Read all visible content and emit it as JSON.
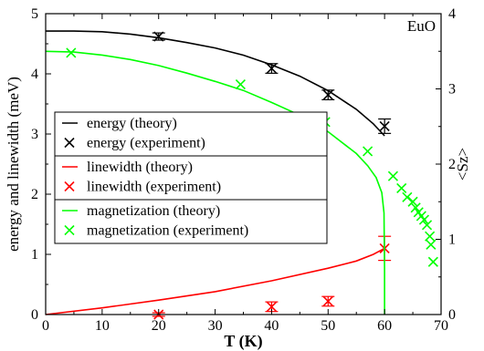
{
  "chart_data": {
    "type": "line",
    "annotation": "EuO",
    "xlabel": "T (K)",
    "ylabel": "energy and linewidth (meV)",
    "y2label": "<Sz>",
    "xlim": [
      0,
      70
    ],
    "ylim": [
      0,
      5
    ],
    "y2lim": [
      0,
      4
    ],
    "xticks": [
      0,
      10,
      20,
      30,
      40,
      50,
      60,
      70
    ],
    "yticks": [
      0,
      1,
      2,
      3,
      4,
      5
    ],
    "y2ticks": [
      0,
      1,
      2,
      3,
      4
    ],
    "grid": false,
    "legend_position": "center-left",
    "series": [
      {
        "name": "energy (theory)",
        "kind": "line",
        "axis": "left",
        "color": "#000000",
        "x": [
          0,
          5,
          10,
          15,
          20,
          25,
          30,
          35,
          40,
          45,
          50,
          55,
          58,
          60
        ],
        "y": [
          4.71,
          4.71,
          4.7,
          4.66,
          4.6,
          4.52,
          4.43,
          4.31,
          4.15,
          3.96,
          3.72,
          3.41,
          3.17,
          2.97
        ]
      },
      {
        "name": "energy (experiment)",
        "kind": "points",
        "axis": "left",
        "color": "#000000",
        "marker": "x",
        "x": [
          20,
          40,
          50,
          60
        ],
        "y": [
          4.62,
          4.09,
          3.65,
          3.13
        ],
        "err": [
          0.06,
          0.08,
          0.08,
          0.12
        ]
      },
      {
        "name": "linewidth (theory)",
        "kind": "line",
        "axis": "left",
        "color": "#ff0000",
        "x": [
          0,
          10,
          20,
          30,
          40,
          50,
          55,
          58,
          60
        ],
        "y": [
          0,
          0.11,
          0.24,
          0.38,
          0.56,
          0.77,
          0.89,
          1.0,
          1.1
        ]
      },
      {
        "name": "linewidth (experiment)",
        "kind": "points",
        "axis": "left",
        "color": "#ff0000",
        "marker": "x",
        "x": [
          20,
          40,
          50,
          60
        ],
        "y": [
          0.0,
          0.13,
          0.22,
          1.1
        ],
        "err": [
          0.03,
          0.08,
          0.08,
          0.2
        ]
      },
      {
        "name": "magnetization (theory)",
        "kind": "line",
        "axis": "right",
        "color": "#00ff00",
        "x": [
          0,
          5,
          10,
          15,
          20,
          25,
          30,
          35,
          40,
          45,
          50,
          55,
          57,
          58.5,
          59.5,
          59.9,
          60,
          60
        ],
        "y": [
          3.5,
          3.49,
          3.45,
          3.39,
          3.31,
          3.21,
          3.1,
          2.98,
          2.82,
          2.65,
          2.43,
          2.14,
          1.98,
          1.82,
          1.62,
          1.35,
          0.6,
          0
        ]
      },
      {
        "name": "magnetization (experiment)",
        "kind": "points",
        "axis": "right",
        "color": "#00ff00",
        "marker": "x",
        "x": [
          4.5,
          34.5,
          49.5,
          57,
          61.5,
          63,
          64,
          65,
          65.5,
          66,
          66.5,
          67,
          67.5,
          68,
          68.2,
          68.6
        ],
        "y": [
          3.48,
          3.06,
          2.56,
          2.17,
          1.84,
          1.68,
          1.56,
          1.5,
          1.42,
          1.36,
          1.31,
          1.26,
          1.19,
          1.04,
          0.93,
          0.7
        ]
      }
    ]
  }
}
